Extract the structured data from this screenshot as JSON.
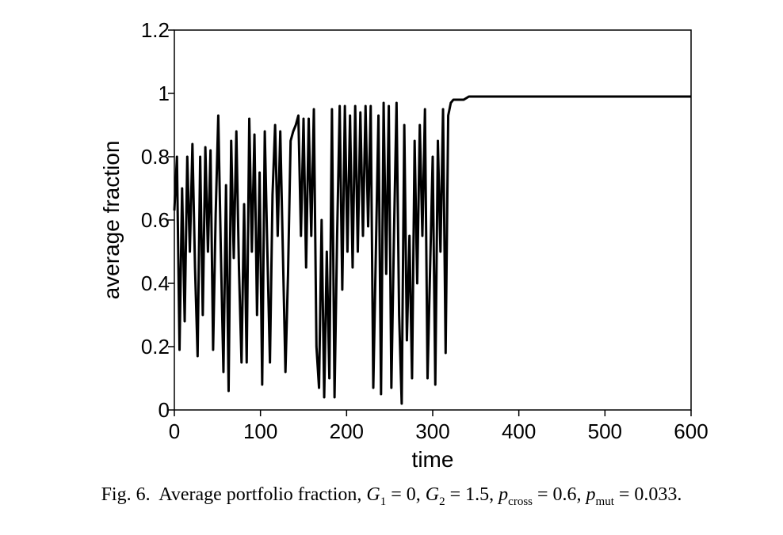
{
  "caption": {
    "label": "Fig. 6.",
    "text": "Average portfolio fraction,",
    "g1_sym": "G",
    "g1_sub": "1",
    "g1_val": "= 0,",
    "g2_sym": "G",
    "g2_sub": "2",
    "g2_val": "= 1.5,",
    "pcross_sym": "p",
    "pcross_sub": "cross",
    "pcross_val": "= 0.6,",
    "pmut_sym": "p",
    "pmut_sub": "mut",
    "pmut_val": "= 0.033."
  },
  "chart_data": {
    "type": "line",
    "title": "",
    "xlabel": "time",
    "ylabel": "average fraction",
    "xlim": [
      0,
      600
    ],
    "ylim": [
      0,
      1.2
    ],
    "xticks": [
      "0",
      "100",
      "200",
      "300",
      "400",
      "500",
      "600"
    ],
    "yticks": [
      "0",
      "0.2",
      "0.4",
      "0.6",
      "0.8",
      "1",
      "1.2"
    ],
    "grid": false,
    "legend": "none",
    "line_color": "#000000",
    "series": [
      {
        "x": [
          0,
          3,
          6,
          9,
          12,
          15,
          18,
          21,
          24,
          27,
          30,
          33,
          36,
          39,
          42,
          45,
          48,
          51,
          54,
          57,
          60,
          63,
          66,
          69,
          72,
          75,
          78,
          81,
          84,
          87,
          90,
          93,
          96,
          99,
          102,
          105,
          108,
          111,
          114,
          117,
          120,
          123,
          126,
          129,
          132,
          135,
          138,
          141,
          144,
          147,
          150,
          153,
          156,
          159,
          162,
          165,
          168,
          171,
          174,
          177,
          180,
          183,
          186,
          189,
          192,
          195,
          198,
          201,
          204,
          207,
          210,
          213,
          216,
          219,
          222,
          225,
          228,
          231,
          234,
          237,
          240,
          243,
          246,
          249,
          252,
          255,
          258,
          261,
          264,
          267,
          270,
          273,
          276,
          279,
          282,
          285,
          288,
          291,
          294,
          297,
          300,
          303,
          306,
          309,
          312,
          315,
          318,
          321,
          324,
          327,
          330,
          333,
          336,
          339,
          342,
          345,
          348,
          351,
          354,
          357,
          360,
          363,
          366,
          369,
          372,
          375,
          378,
          381,
          384,
          390,
          400,
          420,
          440,
          460,
          480,
          500,
          520,
          540,
          560,
          580,
          600
        ],
        "values": [
          0.63,
          0.8,
          0.19,
          0.7,
          0.28,
          0.8,
          0.5,
          0.84,
          0.45,
          0.17,
          0.8,
          0.3,
          0.83,
          0.5,
          0.82,
          0.19,
          0.62,
          0.93,
          0.5,
          0.12,
          0.71,
          0.06,
          0.85,
          0.48,
          0.88,
          0.45,
          0.15,
          0.65,
          0.15,
          0.92,
          0.5,
          0.87,
          0.3,
          0.75,
          0.08,
          0.88,
          0.5,
          0.15,
          0.68,
          0.9,
          0.55,
          0.88,
          0.5,
          0.12,
          0.43,
          0.85,
          0.88,
          0.9,
          0.93,
          0.55,
          0.92,
          0.45,
          0.92,
          0.55,
          0.95,
          0.2,
          0.07,
          0.6,
          0.04,
          0.5,
          0.1,
          0.95,
          0.04,
          0.55,
          0.96,
          0.38,
          0.96,
          0.5,
          0.93,
          0.45,
          0.96,
          0.5,
          0.94,
          0.55,
          0.96,
          0.58,
          0.96,
          0.07,
          0.5,
          0.93,
          0.05,
          0.97,
          0.43,
          0.96,
          0.07,
          0.55,
          0.97,
          0.3,
          0.02,
          0.9,
          0.22,
          0.55,
          0.1,
          0.85,
          0.4,
          0.9,
          0.55,
          0.95,
          0.1,
          0.45,
          0.8,
          0.08,
          0.85,
          0.5,
          0.95,
          0.18,
          0.93,
          0.97,
          0.98,
          0.98,
          0.98,
          0.98,
          0.98,
          0.985,
          0.99,
          0.99,
          0.99,
          0.99,
          0.99,
          0.99,
          0.99,
          0.99,
          0.99,
          0.99,
          0.99,
          0.99,
          0.99,
          0.99,
          0.99,
          0.99,
          0.99,
          0.99,
          0.99,
          0.99,
          0.99,
          0.99,
          0.99,
          0.99,
          0.99,
          0.99,
          0.99
        ]
      }
    ]
  }
}
